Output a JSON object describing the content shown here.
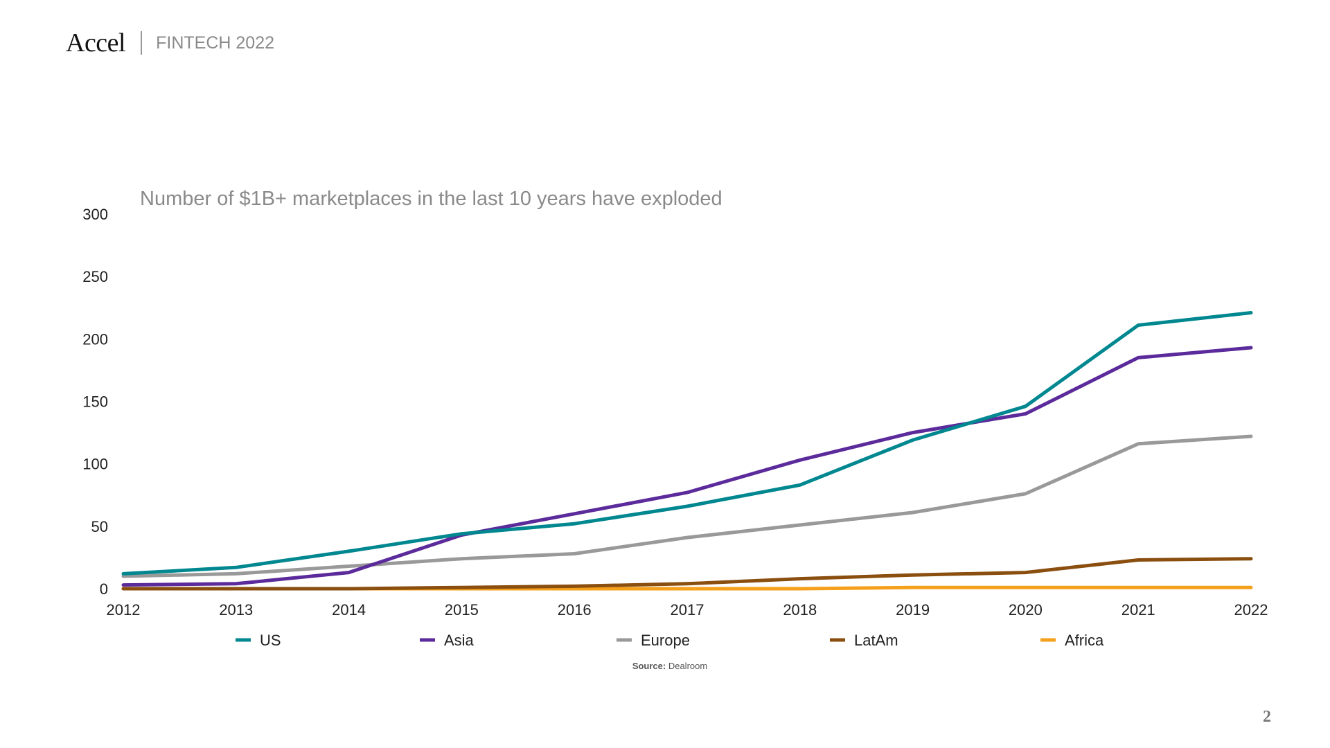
{
  "header": {
    "logo": "Accel",
    "subtitle": "FINTECH 2022"
  },
  "page_number": "2",
  "source": {
    "label": "Source:",
    "value": "Dealroom"
  },
  "chart_data": {
    "type": "line",
    "title": "Number of $1B+ marketplaces in the last 10 years have exploded",
    "xlabel": "",
    "ylabel": "",
    "ylim": [
      0,
      300
    ],
    "yticks": [
      0,
      50,
      100,
      150,
      200,
      250,
      300
    ],
    "grid": false,
    "legend": "bottom",
    "categories": [
      "2012",
      "2013",
      "2014",
      "2015",
      "2016",
      "2017",
      "2018",
      "2019",
      "2020",
      "2021",
      "2022"
    ],
    "series": [
      {
        "name": "US",
        "color": "#008790",
        "values": [
          12,
          17,
          30,
          44,
          52,
          66,
          83,
          119,
          146,
          211,
          221
        ]
      },
      {
        "name": "Asia",
        "color": "#5B2A9B",
        "values": [
          3,
          4,
          13,
          43,
          60,
          77,
          103,
          125,
          140,
          185,
          193
        ]
      },
      {
        "name": "Europe",
        "color": "#999999",
        "values": [
          10,
          12,
          18,
          24,
          28,
          41,
          51,
          61,
          76,
          116,
          122
        ]
      },
      {
        "name": "LatAm",
        "color": "#8A4E0F",
        "values": [
          0,
          0,
          0,
          1,
          2,
          4,
          8,
          11,
          13,
          23,
          24
        ]
      },
      {
        "name": "Africa",
        "color": "#F5A01A",
        "values": [
          0,
          0,
          0,
          0,
          0,
          0,
          0,
          1,
          1,
          1,
          1
        ]
      }
    ]
  }
}
